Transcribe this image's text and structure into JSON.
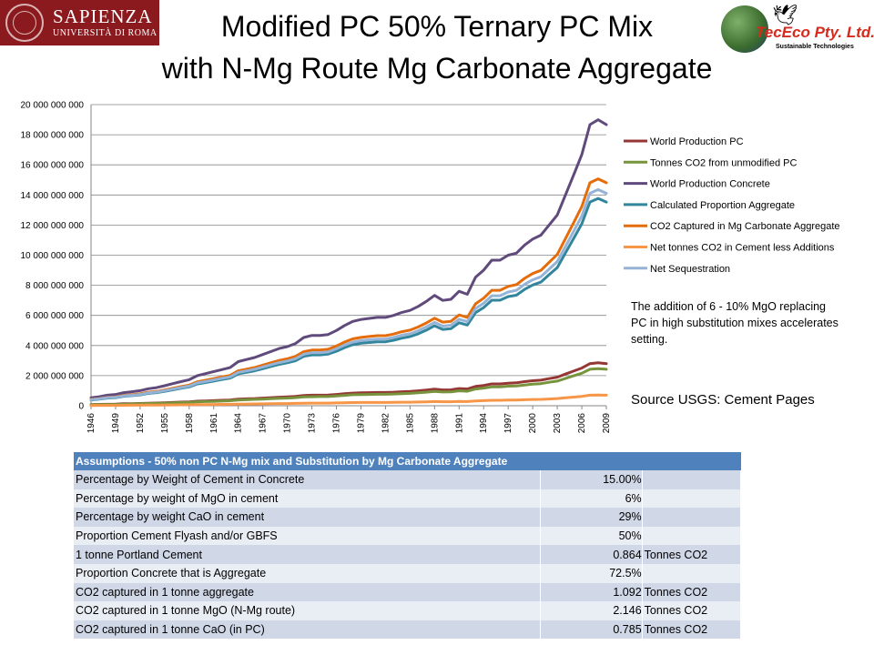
{
  "header": {
    "title_line1": "Modified PC 50% Ternary PC Mix",
    "title_line2": "with N-Mg Route Mg Carbonate Aggregate",
    "logo_left": {
      "name": "SAPIENZA",
      "sub": "UNIVERSITÀ DI ROMA",
      "color": "#8b1a1f"
    },
    "logo_right": {
      "name": "TecEco Pty. Ltd.",
      "sub": "Sustainable Technologies"
    }
  },
  "note": "The addition of 6 - 10% MgO replacing PC in high substitution mixes accelerates setting.",
  "source": "Source USGS: Cement Pages",
  "chart_data": {
    "type": "line",
    "x": [
      1946,
      1947,
      1948,
      1949,
      1950,
      1951,
      1952,
      1953,
      1954,
      1955,
      1956,
      1957,
      1958,
      1959,
      1960,
      1961,
      1962,
      1963,
      1964,
      1965,
      1966,
      1967,
      1968,
      1969,
      1970,
      1971,
      1972,
      1973,
      1974,
      1975,
      1976,
      1977,
      1978,
      1979,
      1980,
      1981,
      1982,
      1983,
      1984,
      1985,
      1986,
      1987,
      1988,
      1989,
      1990,
      1991,
      1992,
      1993,
      1994,
      1995,
      1996,
      1997,
      1998,
      1999,
      2000,
      2001,
      2002,
      2003,
      2004,
      2005,
      2006,
      2007,
      2008,
      2009
    ],
    "xticks": [
      "1946",
      "1949",
      "1952",
      "1955",
      "1958",
      "1961",
      "1964",
      "1967",
      "1970",
      "1973",
      "1976",
      "1979",
      "1982",
      "1985",
      "1988",
      "1991",
      "1994",
      "1997",
      "2000",
      "2003",
      "2006",
      "2009"
    ],
    "ylim": [
      0,
      20000000000
    ],
    "yticks": [
      "0",
      "2 000 000 000",
      "4 000 000 000",
      "6 000 000 000",
      "8 000 000 000",
      "10 000 000 000",
      "12 000 000 000",
      "14 000 000 000",
      "16 000 000 000",
      "18 000 000 000",
      "20 000 000 000"
    ],
    "grid": true,
    "legend_position": "right",
    "series": [
      {
        "name": "World Production PC",
        "color": "#953735",
        "values": [
          80000000,
          90000000,
          95000000,
          100000000,
          130000000,
          140000000,
          150000000,
          170000000,
          180000000,
          200000000,
          220000000,
          240000000,
          260000000,
          300000000,
          320000000,
          340000000,
          360000000,
          380000000,
          440000000,
          460000000,
          480000000,
          510000000,
          540000000,
          570000000,
          590000000,
          620000000,
          680000000,
          700000000,
          700000000,
          710000000,
          750000000,
          800000000,
          840000000,
          860000000,
          870000000,
          880000000,
          880000000,
          900000000,
          930000000,
          950000000,
          990000000,
          1040000000,
          1100000000,
          1050000000,
          1060000000,
          1140000000,
          1110000000,
          1280000000,
          1350000000,
          1450000000,
          1450000000,
          1500000000,
          1520000000,
          1600000000,
          1660000000,
          1700000000,
          1800000000,
          1900000000,
          2100000000,
          2300000000,
          2500000000,
          2800000000,
          2850000000,
          2800000000
        ]
      },
      {
        "name": "Tonnes CO2 from unmodified PC",
        "color": "#77933c",
        "values": [
          70000000,
          78000000,
          82000000,
          86000000,
          110000000,
          120000000,
          130000000,
          150000000,
          160000000,
          170000000,
          190000000,
          210000000,
          230000000,
          260000000,
          280000000,
          290000000,
          310000000,
          330000000,
          380000000,
          400000000,
          420000000,
          440000000,
          470000000,
          490000000,
          510000000,
          540000000,
          590000000,
          600000000,
          610000000,
          610000000,
          650000000,
          690000000,
          730000000,
          740000000,
          750000000,
          760000000,
          760000000,
          780000000,
          800000000,
          820000000,
          860000000,
          900000000,
          950000000,
          910000000,
          920000000,
          990000000,
          960000000,
          1110000000,
          1170000000,
          1250000000,
          1250000000,
          1300000000,
          1310000000,
          1380000000,
          1430000000,
          1470000000,
          1560000000,
          1640000000,
          1810000000,
          1990000000,
          2160000000,
          2420000000,
          2460000000,
          2420000000
        ]
      },
      {
        "name": "World Production Concrete",
        "color": "#604a7b",
        "values": [
          530000000,
          600000000,
          700000000,
          750000000,
          870000000,
          930000000,
          1000000000,
          1130000000,
          1200000000,
          1330000000,
          1470000000,
          1600000000,
          1730000000,
          2000000000,
          2130000000,
          2270000000,
          2400000000,
          2530000000,
          2930000000,
          3070000000,
          3200000000,
          3400000000,
          3600000000,
          3800000000,
          3930000000,
          4130000000,
          4530000000,
          4670000000,
          4670000000,
          4730000000,
          5000000000,
          5330000000,
          5600000000,
          5730000000,
          5800000000,
          5870000000,
          5870000000,
          6000000000,
          6200000000,
          6330000000,
          6600000000,
          6930000000,
          7330000000,
          7000000000,
          7070000000,
          7600000000,
          7400000000,
          8530000000,
          9000000000,
          9670000000,
          9670000000,
          10000000000,
          10130000000,
          10670000000,
          11070000000,
          11330000000,
          12000000000,
          12670000000,
          14000000000,
          15330000000,
          16670000000,
          18670000000,
          19000000000,
          18670000000
        ]
      },
      {
        "name": "Calculated Proportion Aggregate",
        "color": "#31859c",
        "values": [
          380000000,
          440000000,
          510000000,
          540000000,
          630000000,
          670000000,
          720000000,
          820000000,
          870000000,
          960000000,
          1060000000,
          1160000000,
          1250000000,
          1450000000,
          1540000000,
          1640000000,
          1740000000,
          1830000000,
          2120000000,
          2220000000,
          2320000000,
          2460000000,
          2610000000,
          2750000000,
          2850000000,
          2990000000,
          3280000000,
          3380000000,
          3380000000,
          3430000000,
          3620000000,
          3860000000,
          4060000000,
          4150000000,
          4200000000,
          4250000000,
          4250000000,
          4350000000,
          4490000000,
          4590000000,
          4780000000,
          5020000000,
          5310000000,
          5070000000,
          5120000000,
          5510000000,
          5360000000,
          6180000000,
          6520000000,
          7010000000,
          7010000000,
          7250000000,
          7340000000,
          7730000000,
          8020000000,
          8210000000,
          8700000000,
          9180000000,
          10150000000,
          11110000000,
          12080000000,
          13530000000,
          13770000000,
          13530000000
        ]
      },
      {
        "name": "CO2 Captured in Mg Carbonate Aggregate",
        "color": "#e46c0a",
        "values": [
          420000000,
          480000000,
          560000000,
          590000000,
          690000000,
          730000000,
          790000000,
          900000000,
          950000000,
          1050000000,
          1160000000,
          1270000000,
          1370000000,
          1590000000,
          1690000000,
          1800000000,
          1910000000,
          2010000000,
          2320000000,
          2430000000,
          2540000000,
          2700000000,
          2860000000,
          3010000000,
          3120000000,
          3280000000,
          3590000000,
          3700000000,
          3700000000,
          3750000000,
          3970000000,
          4230000000,
          4440000000,
          4540000000,
          4600000000,
          4650000000,
          4650000000,
          4760000000,
          4920000000,
          5020000000,
          5230000000,
          5500000000,
          5810000000,
          5550000000,
          5610000000,
          6030000000,
          5870000000,
          6770000000,
          7140000000,
          7670000000,
          7670000000,
          7930000000,
          8040000000,
          8460000000,
          8780000000,
          8990000000,
          9520000000,
          10050000000,
          11100000000,
          12160000000,
          13220000000,
          14810000000,
          15070000000,
          14810000000
        ]
      },
      {
        "name": "Net tonnes CO2 in Cement less Additions",
        "color": "#f79646",
        "values": [
          20000000,
          22000000,
          24000000,
          25000000,
          32000000,
          35000000,
          38000000,
          42000000,
          45000000,
          50000000,
          55000000,
          60000000,
          65000000,
          75000000,
          80000000,
          85000000,
          90000000,
          95000000,
          110000000,
          115000000,
          120000000,
          128000000,
          135000000,
          143000000,
          148000000,
          155000000,
          170000000,
          175000000,
          175000000,
          178000000,
          188000000,
          200000000,
          210000000,
          215000000,
          218000000,
          220000000,
          220000000,
          225000000,
          233000000,
          238000000,
          248000000,
          260000000,
          275000000,
          263000000,
          265000000,
          285000000,
          278000000,
          320000000,
          338000000,
          363000000,
          363000000,
          375000000,
          380000000,
          400000000,
          415000000,
          425000000,
          450000000,
          475000000,
          525000000,
          575000000,
          625000000,
          700000000,
          713000000,
          700000000
        ]
      },
      {
        "name": "Net Sequestration",
        "color": "#95b3d7",
        "values": [
          400000000,
          458000000,
          536000000,
          565000000,
          658000000,
          695000000,
          752000000,
          858000000,
          905000000,
          1000000000,
          1105000000,
          1210000000,
          1305000000,
          1515000000,
          1610000000,
          1715000000,
          1820000000,
          1915000000,
          2210000000,
          2315000000,
          2420000000,
          2572000000,
          2725000000,
          2867000000,
          2972000000,
          3125000000,
          3420000000,
          3525000000,
          3525000000,
          3572000000,
          3782000000,
          4030000000,
          4230000000,
          4325000000,
          4382000000,
          4430000000,
          4430000000,
          4535000000,
          4687000000,
          4782000000,
          4982000000,
          5240000000,
          5535000000,
          5287000000,
          5345000000,
          5745000000,
          5592000000,
          6450000000,
          6802000000,
          7307000000,
          7307000000,
          7555000000,
          7660000000,
          8060000000,
          8365000000,
          8565000000,
          9070000000,
          9575000000,
          10575000000,
          11585000000,
          12595000000,
          14110000000,
          14357000000,
          14110000000
        ]
      }
    ]
  },
  "assumptions": {
    "header": "Assumptions  - 50% non PC N-Mg mix and Substitution by Mg Carbonate Aggregate",
    "rows": [
      {
        "label": "Percentage by Weight of Cement in Concrete",
        "value": "15.00%",
        "unit": ""
      },
      {
        "label": "Percentage by weight of MgO in cement",
        "value": "6%",
        "unit": ""
      },
      {
        "label": "Percentage by weight CaO in cement",
        "value": "29%",
        "unit": ""
      },
      {
        "label": "Proportion Cement Flyash and/or GBFS",
        "value": "50%",
        "unit": ""
      },
      {
        "label": "1 tonne Portland Cement",
        "value": "0.864",
        "unit": "Tonnes CO2"
      },
      {
        "label": "Proportion Concrete that is Aggregate",
        "value": "72.5%",
        "unit": ""
      },
      {
        "label": "CO2 captured in 1 tonne aggregate",
        "value": "1.092",
        "unit": "Tonnes CO2"
      },
      {
        "label": "CO2 captured in 1 tonne MgO (N-Mg route)",
        "value": "2.146",
        "unit": "Tonnes CO2"
      },
      {
        "label": "CO2 captured in 1 tonne CaO (in PC)",
        "value": "0.785",
        "unit": "Tonnes CO2"
      }
    ]
  }
}
